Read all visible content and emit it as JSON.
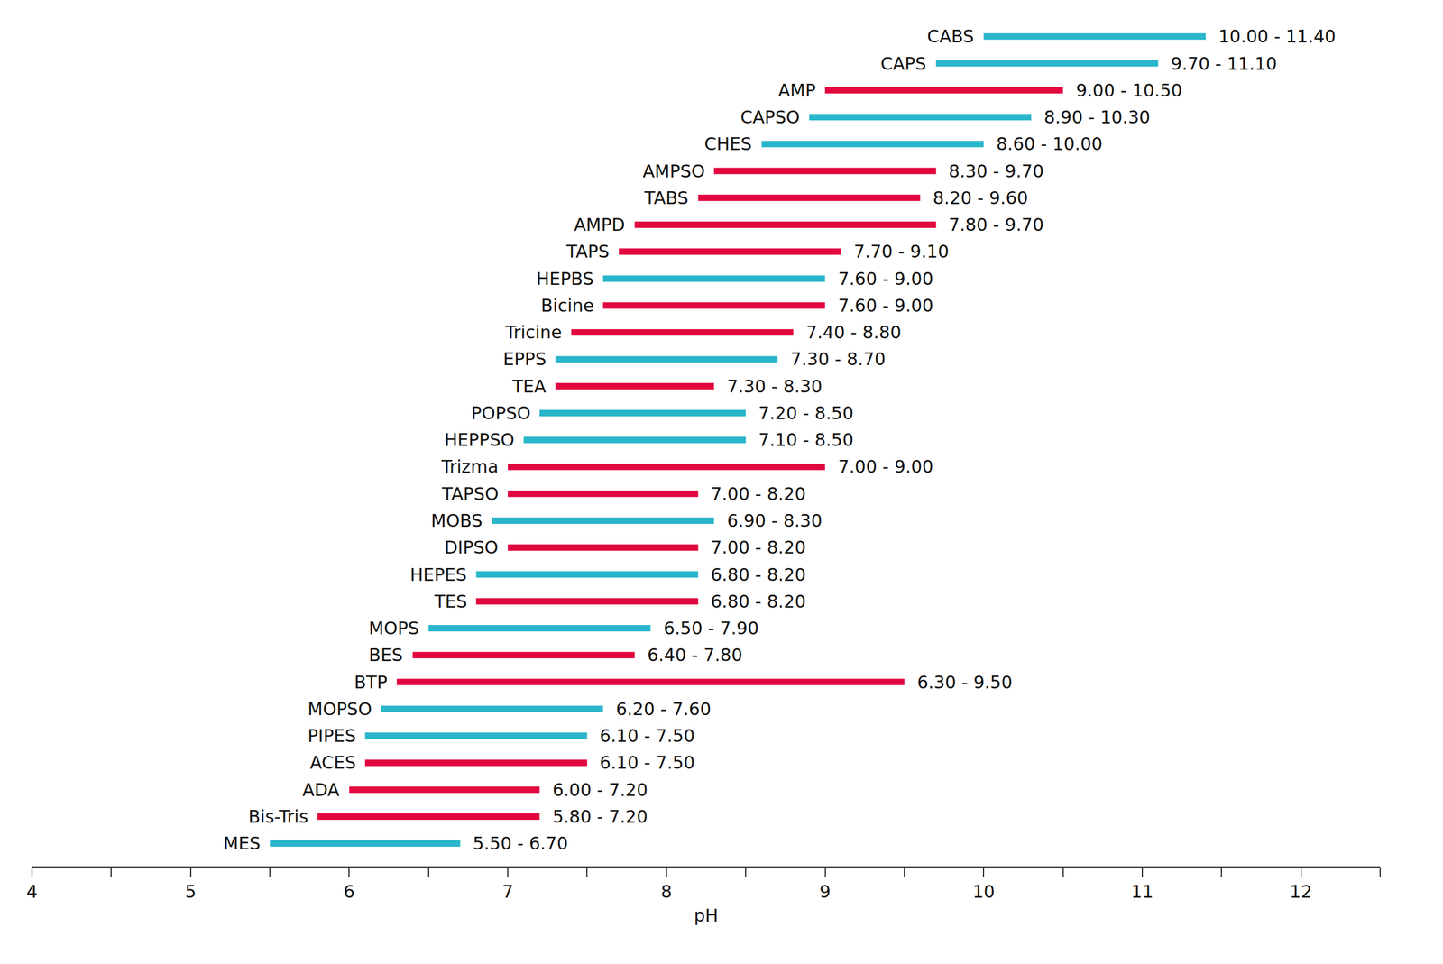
{
  "chart_data": {
    "type": "range_bar",
    "orientation": "horizontal",
    "x_label": "pH",
    "categories": [
      "CABS",
      "CAPS",
      "AMP",
      "CAPSO",
      "CHES",
      "AMPSO",
      "TABS",
      "AMPD",
      "TAPS",
      "HEPBS",
      "Bicine",
      "Tricine",
      "EPPS",
      "TEA",
      "POPSO",
      "HEPPSO",
      "Trizma",
      "TAPSO",
      "MOBS",
      "DIPSO",
      "HEPES",
      "TES",
      "MOPS",
      "BES",
      "BTP",
      "MOPSO",
      "PIPES",
      "ACES",
      "ADA",
      "Bis-Tris",
      "MES"
    ],
    "low": [
      10.0,
      9.7,
      9.0,
      8.9,
      8.6,
      8.3,
      8.2,
      7.8,
      7.7,
      7.6,
      7.6,
      7.4,
      7.3,
      7.3,
      7.2,
      7.1,
      7.0,
      7.0,
      6.9,
      7.0,
      6.8,
      6.8,
      6.5,
      6.4,
      6.3,
      6.2,
      6.1,
      6.1,
      6.0,
      5.8,
      5.5
    ],
    "high": [
      11.4,
      11.1,
      10.5,
      10.3,
      10.0,
      9.7,
      9.6,
      9.7,
      9.1,
      9.0,
      9.0,
      8.8,
      8.7,
      8.3,
      8.5,
      8.5,
      9.0,
      8.2,
      8.3,
      8.2,
      8.2,
      8.2,
      7.9,
      7.8,
      9.5,
      7.6,
      7.5,
      7.5,
      7.2,
      7.2,
      6.7
    ],
    "value_labels": [
      "10.00 - 11.40",
      "9.70 - 11.10",
      "9.00 - 10.50",
      "8.90 - 10.30",
      "8.60 - 10.00",
      "8.30 - 9.70",
      "8.20 - 9.60",
      "7.80 - 9.70",
      "7.70 - 9.10",
      "7.60 - 9.00",
      "7.60 - 9.00",
      "7.40 - 8.80",
      "7.30 - 8.70",
      "7.30 - 8.30",
      "7.20 - 8.50",
      "7.10 - 8.50",
      "7.00 - 9.00",
      "7.00 - 8.20",
      "6.90 - 8.30",
      "7.00 - 8.20",
      "6.80 - 8.20",
      "6.80 - 8.20",
      "6.50 - 7.90",
      "6.40 - 7.80",
      "6.30 - 9.50",
      "6.20 - 7.60",
      "6.10 - 7.50",
      "6.10 - 7.50",
      "6.00 - 7.20",
      "5.80 - 7.20",
      "5.50 - 6.70"
    ],
    "colors": [
      "#29b6cb",
      "#29b6cb",
      "#e2063f",
      "#29b6cb",
      "#29b6cb",
      "#e2063f",
      "#e2063f",
      "#e2063f",
      "#e2063f",
      "#29b6cb",
      "#e2063f",
      "#e2063f",
      "#29b6cb",
      "#e2063f",
      "#29b6cb",
      "#29b6cb",
      "#e2063f",
      "#e2063f",
      "#29b6cb",
      "#e2063f",
      "#29b6cb",
      "#e2063f",
      "#29b6cb",
      "#e2063f",
      "#e2063f",
      "#29b6cb",
      "#29b6cb",
      "#e2063f",
      "#e2063f",
      "#e2063f",
      "#29b6cb"
    ],
    "data_labels": true,
    "xlim": [
      4,
      12.5
    ],
    "xticks": [
      4,
      5,
      6,
      7,
      8,
      9,
      10,
      11,
      12
    ],
    "grid": false,
    "tick_labels": "x"
  }
}
